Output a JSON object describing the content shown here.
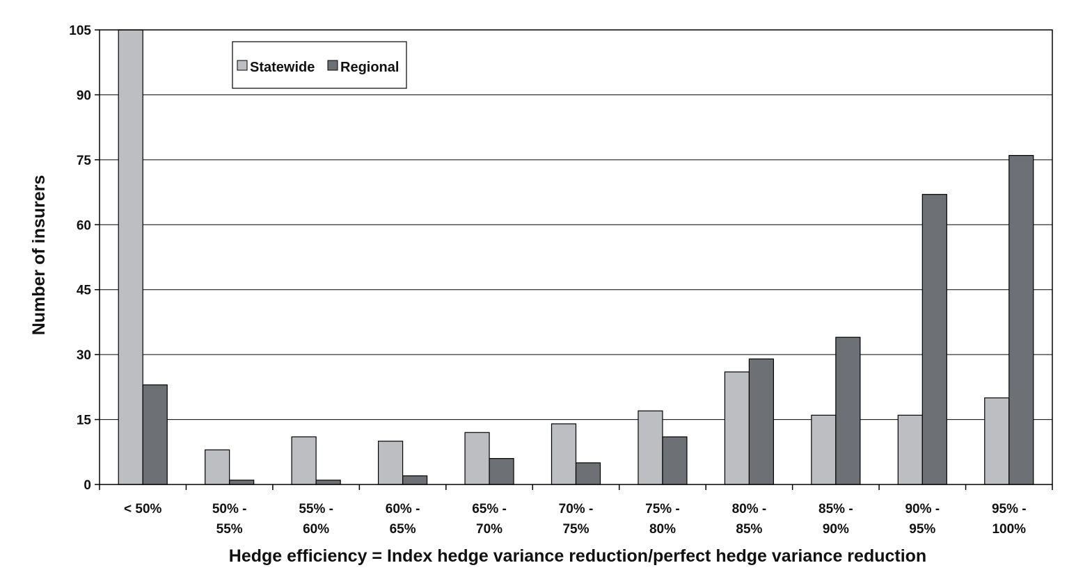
{
  "chart_data": {
    "type": "bar",
    "title": "",
    "xlabel": "Hedge efficiency = Index hedge variance reduction/perfect hedge variance reduction",
    "ylabel": "Number of insurers",
    "ylim": [
      0,
      105
    ],
    "yticks": [
      0,
      15,
      30,
      45,
      60,
      75,
      90,
      105
    ],
    "grid": true,
    "legend_position": "top-left",
    "categories": [
      [
        "< 50%"
      ],
      [
        "50% -",
        "55%"
      ],
      [
        "55% -",
        "60%"
      ],
      [
        "60% -",
        "65%"
      ],
      [
        "65% -",
        "70%"
      ],
      [
        "70% -",
        "75%"
      ],
      [
        "75% -",
        "80%"
      ],
      [
        "80% -",
        "85%"
      ],
      [
        "85% -",
        "90%"
      ],
      [
        "90% -",
        "95%"
      ],
      [
        "95% -",
        "100%"
      ]
    ],
    "series": [
      {
        "name": "Statewide",
        "color": "#bdbec2",
        "values": [
          105,
          8,
          11,
          10,
          12,
          14,
          17,
          26,
          16,
          16,
          20
        ]
      },
      {
        "name": "Regional",
        "color": "#6d7074",
        "values": [
          23,
          1,
          1,
          2,
          6,
          5,
          11,
          29,
          34,
          67,
          76
        ]
      }
    ]
  }
}
